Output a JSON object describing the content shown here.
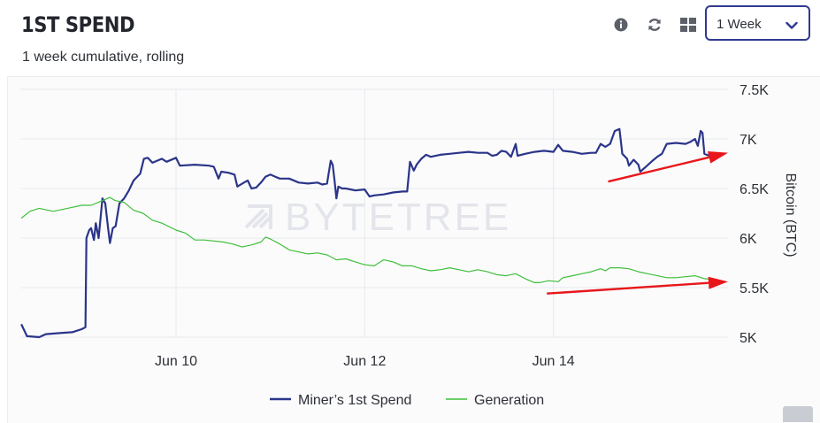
{
  "header": {
    "title": "1ST SPEND",
    "subtitle": "1 week cumulative, rolling",
    "icons": [
      "info-icon",
      "refresh-icon",
      "layout-grid-icon"
    ],
    "range": {
      "selected": "1 Week"
    }
  },
  "watermark": "BYTETREE",
  "colors": {
    "miners": "#2b3589",
    "generation": "#3fbf3a",
    "arrow": "#e8161a",
    "select_border": "#2f3a8f"
  },
  "chart_data": {
    "type": "line",
    "title": "1ST SPEND",
    "subtitle": "1 week cumulative, rolling",
    "ylabel": "Bitcoin (BTC)",
    "ylim": [
      5000,
      7500
    ],
    "yticks": [
      5000,
      5500,
      6000,
      6500,
      7000,
      7500
    ],
    "ytick_labels": [
      "5K",
      "5.5K",
      "6K",
      "6.5K",
      "7K",
      "7.5K"
    ],
    "xlim": [
      8.35,
      15.85
    ],
    "xticks": [
      10,
      12,
      14
    ],
    "xtick_labels": [
      "Jun 10",
      "Jun 12",
      "Jun 14"
    ],
    "grid": true,
    "legend_position": "bottom-center",
    "series": [
      {
        "name": "Miner’s 1st Spend",
        "color": "#2b3589",
        "points": [
          [
            8.36,
            5130
          ],
          [
            8.42,
            5010
          ],
          [
            8.55,
            5000
          ],
          [
            8.62,
            5030
          ],
          [
            8.75,
            5040
          ],
          [
            8.9,
            5050
          ],
          [
            9.0,
            5080
          ],
          [
            9.04,
            5100
          ],
          [
            9.05,
            6000
          ],
          [
            9.08,
            6080
          ],
          [
            9.1,
            6100
          ],
          [
            9.13,
            5980
          ],
          [
            9.15,
            6150
          ],
          [
            9.18,
            6000
          ],
          [
            9.22,
            6400
          ],
          [
            9.25,
            6350
          ],
          [
            9.28,
            6100
          ],
          [
            9.3,
            5950
          ],
          [
            9.33,
            6100
          ],
          [
            9.36,
            6120
          ],
          [
            9.4,
            6350
          ],
          [
            9.45,
            6400
          ],
          [
            9.5,
            6480
          ],
          [
            9.55,
            6580
          ],
          [
            9.62,
            6650
          ],
          [
            9.66,
            6800
          ],
          [
            9.7,
            6810
          ],
          [
            9.75,
            6760
          ],
          [
            9.8,
            6780
          ],
          [
            9.85,
            6800
          ],
          [
            9.9,
            6770
          ],
          [
            10.0,
            6810
          ],
          [
            10.04,
            6730
          ],
          [
            10.2,
            6740
          ],
          [
            10.35,
            6730
          ],
          [
            10.4,
            6720
          ],
          [
            10.45,
            6600
          ],
          [
            10.48,
            6670
          ],
          [
            10.55,
            6660
          ],
          [
            10.62,
            6640
          ],
          [
            10.65,
            6520
          ],
          [
            10.72,
            6560
          ],
          [
            10.76,
            6580
          ],
          [
            10.8,
            6500
          ],
          [
            10.85,
            6510
          ],
          [
            10.9,
            6560
          ],
          [
            10.95,
            6620
          ],
          [
            11.0,
            6640
          ],
          [
            11.05,
            6620
          ],
          [
            11.1,
            6600
          ],
          [
            11.2,
            6600
          ],
          [
            11.3,
            6560
          ],
          [
            11.4,
            6550
          ],
          [
            11.5,
            6560
          ],
          [
            11.55,
            6540
          ],
          [
            11.6,
            6550
          ],
          [
            11.64,
            6780
          ],
          [
            11.66,
            6740
          ],
          [
            11.68,
            6580
          ],
          [
            11.7,
            6400
          ],
          [
            11.72,
            6520
          ],
          [
            11.76,
            6500
          ],
          [
            11.8,
            6500
          ],
          [
            11.9,
            6480
          ],
          [
            12.0,
            6490
          ],
          [
            12.05,
            6420
          ],
          [
            12.1,
            6430
          ],
          [
            12.2,
            6440
          ],
          [
            12.3,
            6460
          ],
          [
            12.4,
            6470
          ],
          [
            12.45,
            6470
          ],
          [
            12.48,
            6770
          ],
          [
            12.52,
            6680
          ],
          [
            12.55,
            6740
          ],
          [
            12.6,
            6800
          ],
          [
            12.65,
            6840
          ],
          [
            12.7,
            6820
          ],
          [
            12.8,
            6840
          ],
          [
            12.9,
            6850
          ],
          [
            13.0,
            6860
          ],
          [
            13.1,
            6870
          ],
          [
            13.2,
            6860
          ],
          [
            13.3,
            6860
          ],
          [
            13.35,
            6830
          ],
          [
            13.4,
            6840
          ],
          [
            13.45,
            6880
          ],
          [
            13.5,
            6870
          ],
          [
            13.55,
            6820
          ],
          [
            13.6,
            6950
          ],
          [
            13.62,
            6830
          ],
          [
            13.7,
            6850
          ],
          [
            13.8,
            6870
          ],
          [
            13.9,
            6880
          ],
          [
            14.0,
            6870
          ],
          [
            14.05,
            6940
          ],
          [
            14.1,
            6880
          ],
          [
            14.2,
            6870
          ],
          [
            14.3,
            6850
          ],
          [
            14.4,
            6860
          ],
          [
            14.45,
            6860
          ],
          [
            14.5,
            6950
          ],
          [
            14.55,
            6920
          ],
          [
            14.6,
            6950
          ],
          [
            14.65,
            7080
          ],
          [
            14.7,
            7100
          ],
          [
            14.73,
            6850
          ],
          [
            14.78,
            6800
          ],
          [
            14.8,
            6730
          ],
          [
            14.85,
            6790
          ],
          [
            14.9,
            6740
          ],
          [
            14.92,
            6670
          ],
          [
            14.98,
            6720
          ],
          [
            15.05,
            6780
          ],
          [
            15.1,
            6820
          ],
          [
            15.15,
            6850
          ],
          [
            15.2,
            6950
          ],
          [
            15.3,
            6960
          ],
          [
            15.4,
            6950
          ],
          [
            15.45,
            6970
          ],
          [
            15.5,
            7000
          ],
          [
            15.53,
            6930
          ],
          [
            15.56,
            7080
          ],
          [
            15.58,
            7060
          ],
          [
            15.6,
            6850
          ],
          [
            15.65,
            6830
          ],
          [
            15.7,
            6820
          ]
        ]
      },
      {
        "name": "Generation",
        "color": "#3fbf3a",
        "points": [
          [
            8.36,
            6200
          ],
          [
            8.45,
            6270
          ],
          [
            8.55,
            6300
          ],
          [
            8.7,
            6270
          ],
          [
            8.85,
            6300
          ],
          [
            9.0,
            6330
          ],
          [
            9.1,
            6330
          ],
          [
            9.2,
            6370
          ],
          [
            9.3,
            6410
          ],
          [
            9.35,
            6380
          ],
          [
            9.45,
            6360
          ],
          [
            9.55,
            6280
          ],
          [
            9.65,
            6250
          ],
          [
            9.75,
            6180
          ],
          [
            9.85,
            6150
          ],
          [
            10.0,
            6080
          ],
          [
            10.1,
            6050
          ],
          [
            10.2,
            5980
          ],
          [
            10.3,
            5980
          ],
          [
            10.5,
            5960
          ],
          [
            10.6,
            5940
          ],
          [
            10.7,
            5910
          ],
          [
            10.8,
            5930
          ],
          [
            10.9,
            5960
          ],
          [
            10.95,
            6010
          ],
          [
            11.0,
            5990
          ],
          [
            11.1,
            5940
          ],
          [
            11.2,
            5880
          ],
          [
            11.3,
            5860
          ],
          [
            11.4,
            5840
          ],
          [
            11.5,
            5850
          ],
          [
            11.6,
            5830
          ],
          [
            11.7,
            5780
          ],
          [
            11.8,
            5790
          ],
          [
            11.9,
            5760
          ],
          [
            12.0,
            5730
          ],
          [
            12.1,
            5720
          ],
          [
            12.2,
            5780
          ],
          [
            12.3,
            5760
          ],
          [
            12.4,
            5720
          ],
          [
            12.5,
            5720
          ],
          [
            12.6,
            5690
          ],
          [
            12.7,
            5670
          ],
          [
            12.8,
            5680
          ],
          [
            12.9,
            5700
          ],
          [
            13.0,
            5680
          ],
          [
            13.1,
            5660
          ],
          [
            13.2,
            5680
          ],
          [
            13.3,
            5660
          ],
          [
            13.4,
            5630
          ],
          [
            13.5,
            5620
          ],
          [
            13.6,
            5640
          ],
          [
            13.7,
            5590
          ],
          [
            13.8,
            5550
          ],
          [
            13.85,
            5550
          ],
          [
            13.95,
            5570
          ],
          [
            14.05,
            5560
          ],
          [
            14.1,
            5600
          ],
          [
            14.2,
            5620
          ],
          [
            14.3,
            5640
          ],
          [
            14.4,
            5660
          ],
          [
            14.5,
            5690
          ],
          [
            14.55,
            5670
          ],
          [
            14.6,
            5700
          ],
          [
            14.7,
            5700
          ],
          [
            14.8,
            5690
          ],
          [
            14.9,
            5660
          ],
          [
            15.0,
            5640
          ],
          [
            15.1,
            5620
          ],
          [
            15.2,
            5600
          ],
          [
            15.3,
            5600
          ],
          [
            15.4,
            5610
          ],
          [
            15.5,
            5620
          ],
          [
            15.6,
            5590
          ],
          [
            15.7,
            5580
          ]
        ]
      }
    ],
    "annotations": [
      {
        "type": "arrow",
        "color": "#e8161a",
        "from": [
          14.58,
          6570
        ],
        "to": [
          15.85,
          6860
        ]
      },
      {
        "type": "arrow",
        "color": "#e8161a",
        "from": [
          13.93,
          5440
        ],
        "to": [
          15.85,
          5560
        ]
      }
    ]
  }
}
